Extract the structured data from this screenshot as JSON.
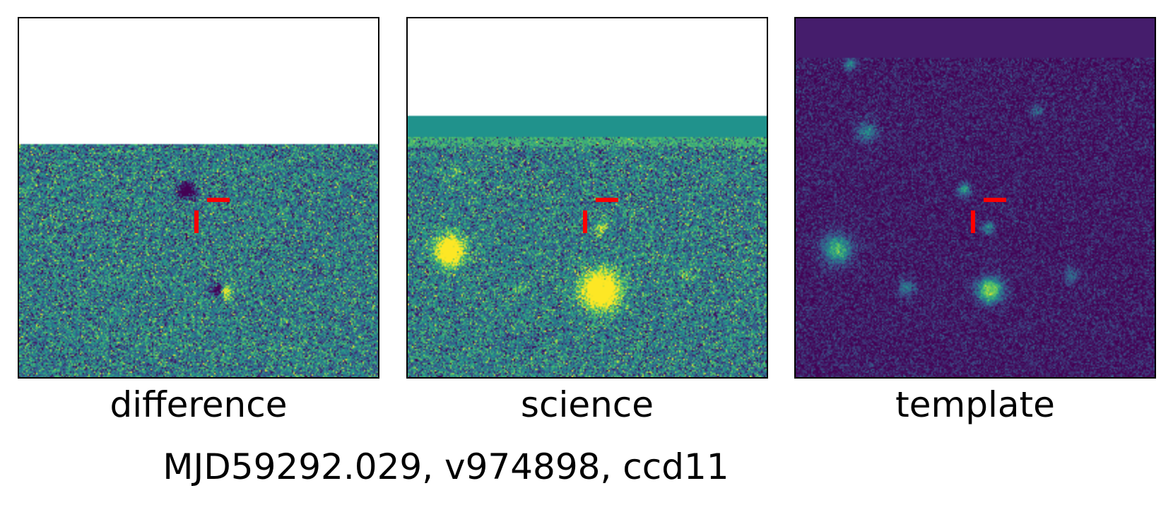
{
  "panels": [
    {
      "id": "difference",
      "label": "difference"
    },
    {
      "id": "science",
      "label": "science"
    },
    {
      "id": "template",
      "label": "template"
    }
  ],
  "footer": "MJD59292.029, v974898, ccd11",
  "marker_color": "#ff0000",
  "colormap": "viridis"
}
